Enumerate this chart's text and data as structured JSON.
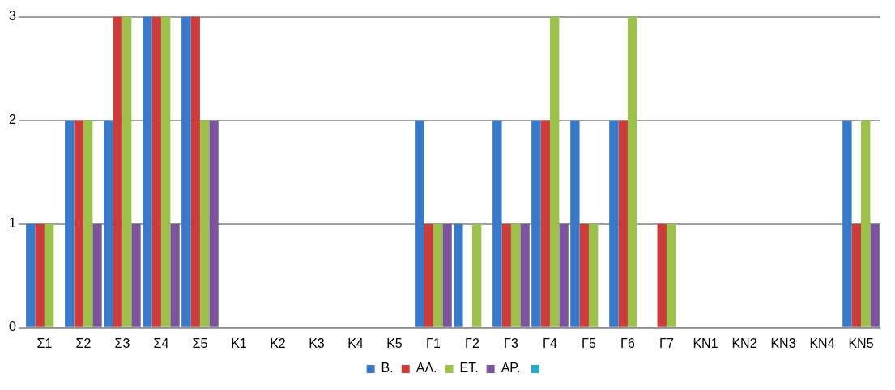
{
  "chart_data": {
    "type": "bar",
    "categories": [
      "Σ1",
      "Σ2",
      "Σ3",
      "Σ4",
      "Σ5",
      "K1",
      "K2",
      "K3",
      "K4",
      "K5",
      "Γ1",
      "Γ2",
      "Γ3",
      "Γ4",
      "Γ5",
      "Γ6",
      "Γ7",
      "KN1",
      "KN2",
      "KN3",
      "KN4",
      "KN5"
    ],
    "series": [
      {
        "name": "B.",
        "color": "#3a78c8",
        "values": [
          1,
          2,
          2,
          3,
          3,
          0,
          0,
          0,
          0,
          0,
          2,
          1,
          2,
          2,
          2,
          2,
          0,
          0,
          0,
          0,
          0,
          2
        ]
      },
      {
        "name": "ΑΛ.",
        "color": "#cc3c3a",
        "values": [
          1,
          2,
          3,
          3,
          3,
          0,
          0,
          0,
          0,
          0,
          1,
          0,
          1,
          2,
          1,
          2,
          1,
          0,
          0,
          0,
          0,
          1
        ]
      },
      {
        "name": "ΕΤ.",
        "color": "#9bc24a",
        "values": [
          1,
          2,
          3,
          3,
          2,
          0,
          0,
          0,
          0,
          0,
          1,
          1,
          1,
          3,
          1,
          3,
          1,
          0,
          0,
          0,
          0,
          2
        ]
      },
      {
        "name": "ΑΡ.",
        "color": "#7a559e",
        "values": [
          0,
          1,
          1,
          1,
          2,
          0,
          0,
          0,
          0,
          0,
          1,
          0,
          1,
          1,
          0,
          0,
          0,
          0,
          0,
          0,
          0,
          1
        ]
      }
    ],
    "ylim": [
      0,
      3
    ],
    "yticks": [
      0,
      1,
      2,
      3
    ],
    "grid": "y",
    "legend": "bottom"
  }
}
